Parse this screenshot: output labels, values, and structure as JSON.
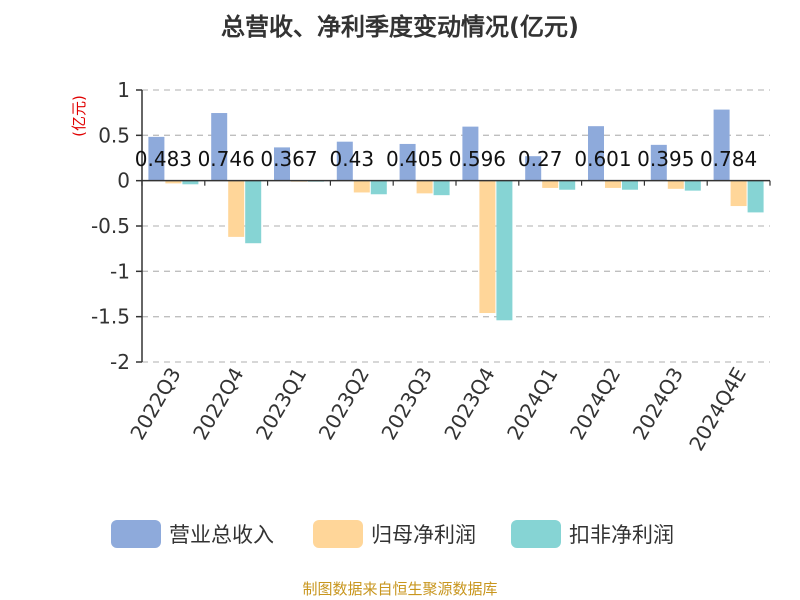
{
  "title": "总营收、净利季度变动情况(亿元)",
  "unit_label": "(亿元)",
  "source": "制图数据来自恒生聚源数据库",
  "colors": {
    "revenue": "#8eaadb",
    "net_profit": "#ffd699",
    "deducted_profit": "#86d4d4",
    "grid": "#bfbfbf",
    "axis": "#333333"
  },
  "chart_data": {
    "type": "bar",
    "title": "总营收、净利季度变动情况(亿元)",
    "ylabel": "(亿元)",
    "xlabel": "",
    "ylim": [
      -2,
      1
    ],
    "yticks": [
      1,
      0.5,
      0,
      -0.5,
      -1,
      -1.5,
      -2
    ],
    "ytick_labels": [
      "1",
      "0.5",
      "0",
      "-0.5",
      "-1",
      "-1.5",
      "-2"
    ],
    "grid": true,
    "legend": "bottom",
    "categories": [
      "2022Q3",
      "2022Q4",
      "2023Q1",
      "2023Q2",
      "2023Q3",
      "2023Q4",
      "2024Q1",
      "2024Q2",
      "2024Q3",
      "2024Q4E"
    ],
    "series": [
      {
        "name": "营业总收入",
        "values": [
          0.483,
          0.746,
          0.367,
          0.43,
          0.405,
          0.596,
          0.27,
          0.601,
          0.395,
          0.784
        ]
      },
      {
        "name": "归母净利润",
        "values": [
          -0.03,
          -0.62,
          -0.01,
          -0.13,
          -0.14,
          -1.46,
          -0.08,
          -0.08,
          -0.09,
          -0.28
        ]
      },
      {
        "name": "扣非净利润",
        "values": [
          -0.04,
          -0.69,
          -0.01,
          -0.15,
          -0.16,
          -1.54,
          -0.1,
          -0.1,
          -0.11,
          -0.35
        ]
      }
    ],
    "data_labels": [
      "0.483",
      "0.746",
      "0.367",
      "0.43",
      "0.405",
      "0.596",
      "0.27",
      "0.601",
      "0.395",
      "0.784"
    ]
  }
}
